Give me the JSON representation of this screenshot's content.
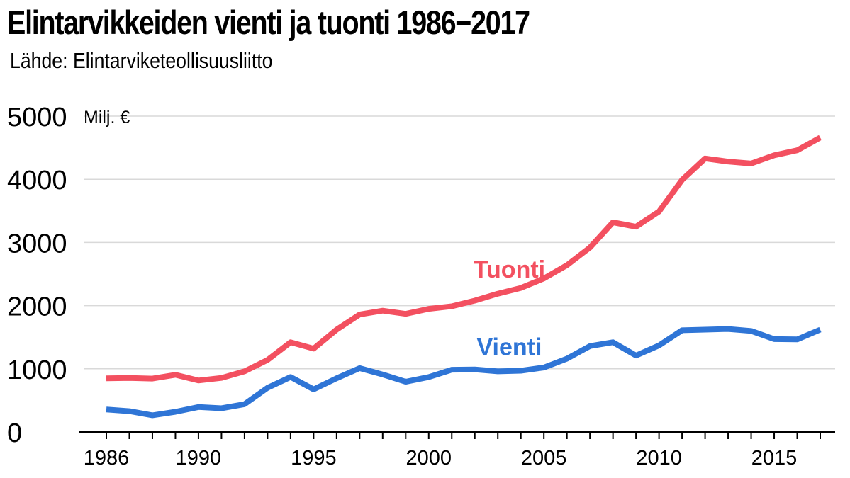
{
  "chart_data": {
    "type": "line",
    "title": "Elintarvikkeiden vienti ja tuonti 1986−2017",
    "subtitle": "Lähde: Elintarviketeollisuusliitto",
    "unit_label": "Milj. €",
    "xlabel": "",
    "ylabel": "",
    "x": [
      1986,
      1987,
      1988,
      1989,
      1990,
      1991,
      1992,
      1993,
      1994,
      1995,
      1996,
      1997,
      1998,
      1999,
      2000,
      2001,
      2002,
      2003,
      2004,
      2005,
      2006,
      2007,
      2008,
      2009,
      2010,
      2011,
      2012,
      2013,
      2014,
      2015,
      2016,
      2017
    ],
    "xlim": [
      1986,
      2017
    ],
    "ylim": [
      0,
      5000
    ],
    "x_ticks": [
      "1986",
      "1990",
      "1995",
      "2000",
      "2005",
      "2010",
      "2015"
    ],
    "y_ticks": [
      "0",
      "1000",
      "2000",
      "3000",
      "4000",
      "5000"
    ],
    "grid": "horizontal",
    "series": [
      {
        "name": "Tuonti",
        "color": "#f35060",
        "values": [
          850,
          855,
          845,
          905,
          815,
          855,
          960,
          1140,
          1420,
          1320,
          1620,
          1860,
          1920,
          1870,
          1950,
          1990,
          2080,
          2190,
          2280,
          2430,
          2640,
          2920,
          3320,
          3250,
          3490,
          3990,
          4330,
          4280,
          4250,
          4380,
          4460,
          4660
        ]
      },
      {
        "name": "Vienti",
        "color": "#2f75d6",
        "values": [
          355,
          330,
          265,
          320,
          395,
          375,
          440,
          700,
          870,
          675,
          850,
          1010,
          910,
          795,
          870,
          985,
          990,
          960,
          970,
          1020,
          1160,
          1360,
          1420,
          1210,
          1370,
          1610,
          1620,
          1630,
          1600,
          1470,
          1465,
          1620
        ]
      }
    ]
  }
}
